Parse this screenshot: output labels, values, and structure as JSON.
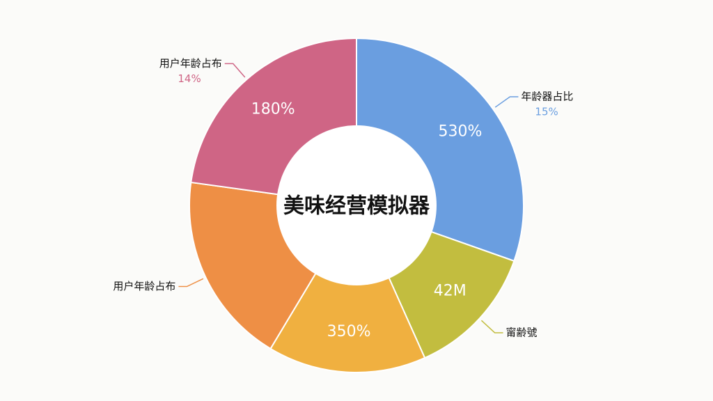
{
  "chart_data": {
    "type": "pie",
    "title": "美味经营模拟器",
    "categories": [
      "年龄器占比",
      "甯齢號",
      null,
      "用户年龄占布",
      "用户年龄占布"
    ],
    "values": [
      30.4,
      12.9,
      15.3,
      18.6,
      22.8
    ],
    "colors": [
      "#6a9ee0",
      "#c2bd3f",
      "#f0b040",
      "#ee8f45",
      "#cf6585"
    ],
    "inner_labels": [
      "530%",
      "42M",
      "350%",
      null,
      "180%"
    ],
    "sublabels": [
      "15%",
      null,
      null,
      null,
      "14%"
    ],
    "donut": true
  }
}
